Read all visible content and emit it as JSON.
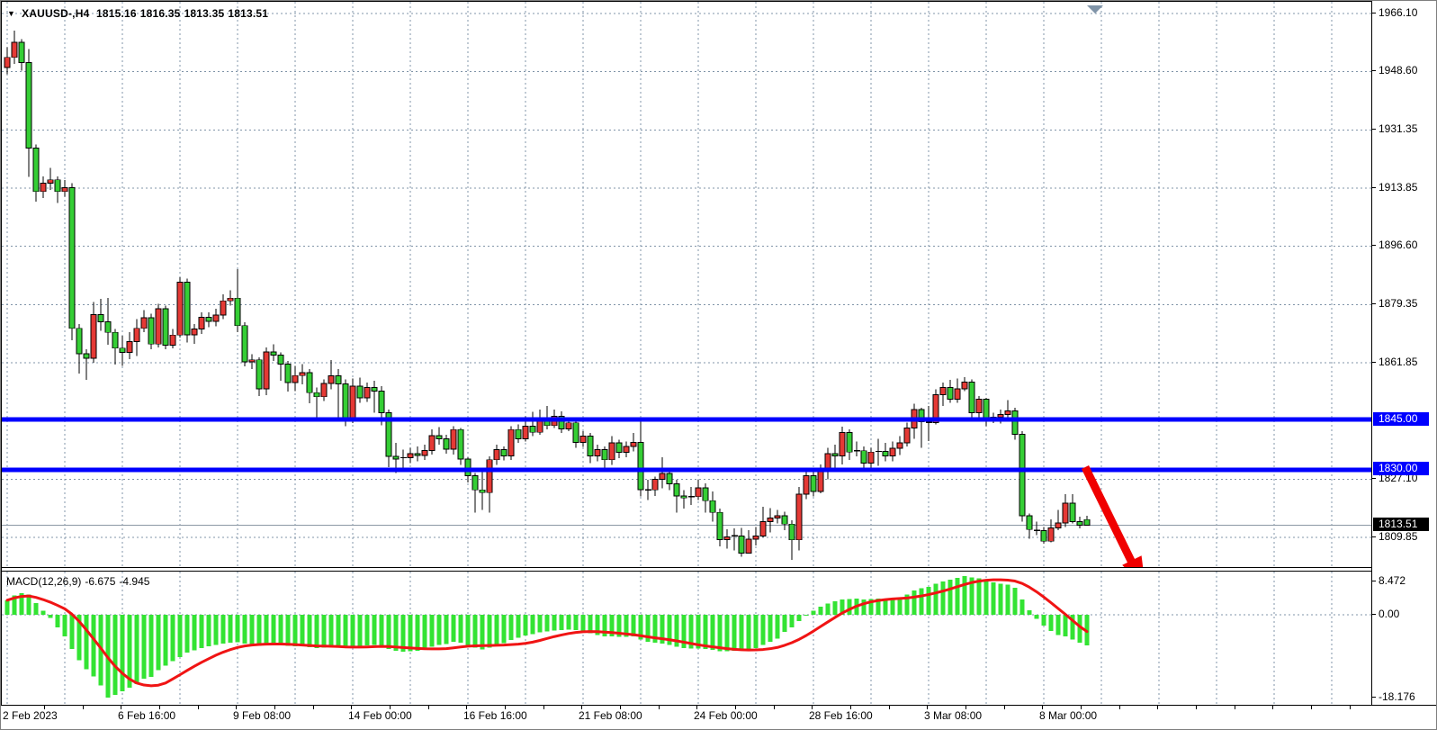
{
  "title": {
    "symbol_period": "XAUUSD-,H4",
    "open": "1815.16",
    "high": "1816.35",
    "low": "1813.35",
    "close": "1813.51"
  },
  "indicator": {
    "name": "MACD(12,26,9)",
    "macd_value": "-6.675",
    "signal_value": "-4.945"
  },
  "price_scale": {
    "gridline_labels": [
      {
        "text": "1966.10",
        "k": 0
      },
      {
        "text": "1948.60",
        "k": 1
      },
      {
        "text": "1931.35",
        "k": 2
      },
      {
        "text": "1913.85",
        "k": 3
      },
      {
        "text": "1896.60",
        "k": 4
      },
      {
        "text": "1879.35",
        "k": 5
      },
      {
        "text": "1861.85",
        "k": 6
      },
      {
        "text": "1827.10",
        "k": 8
      },
      {
        "text": "1809.85",
        "k": 9
      }
    ],
    "hline_tags": [
      {
        "text": "1845.00",
        "price": 1845.0
      },
      {
        "text": "1830.00",
        "price": 1830.0
      }
    ],
    "current_tag": {
      "text": "1813.51",
      "price": 1813.51
    }
  },
  "macd_scale": {
    "max": "8.472",
    "zero": "0.00",
    "min": "-18.176"
  },
  "time_scale": {
    "labels": [
      "2 Feb 2023",
      "6 Feb 16:00",
      "9 Feb 08:00",
      "14 Feb 00:00",
      "16 Feb 16:00",
      "21 Feb 08:00",
      "24 Feb 00:00",
      "28 Feb 16:00",
      "3 Mar 08:00",
      "8 Mar 00:00"
    ]
  },
  "colors": {
    "bull_candle": "#e53935",
    "bear_candle": "#35ce35",
    "candle_outline": "#000000",
    "wick": "#000000",
    "hline_blue": "#0000ff",
    "tag_blue_bg": "#0000ff",
    "tag_black_bg": "#000000",
    "tag_text": "#ffffff",
    "grid": "#8094a8",
    "current_price_line": "#8c98a4",
    "macd_histogram": "#33e333",
    "macd_signal": "#f01414",
    "arrow_red": "#f00000",
    "shift_marker": "#8094a8",
    "text": "#000000",
    "background": "#ffffff"
  },
  "chart_data": {
    "type": "candlestick",
    "symbol": "XAUUSD",
    "timeframe": "H4",
    "title": "XAUUSD-,H4 1815.16 1816.35 1813.35 1813.51",
    "price_axis_ticks": [
      1966.1,
      1948.6,
      1931.35,
      1913.85,
      1896.6,
      1879.35,
      1861.85,
      1845.0,
      1830.0,
      1827.1,
      1813.51,
      1809.85
    ],
    "time_axis_labels": [
      "2 Feb 2023",
      "6 Feb 16:00",
      "9 Feb 08:00",
      "14 Feb 00:00",
      "16 Feb 16:00",
      "21 Feb 08:00",
      "24 Feb 00:00",
      "28 Feb 16:00",
      "3 Mar 08:00",
      "8 Mar 00:00"
    ],
    "horizontal_lines": [
      1845.0,
      1830.0
    ],
    "current_price": 1813.51,
    "annotation": "large red arrow pointing down-right from the 1830 level",
    "candles_ohlc": [
      [
        1950.0,
        1956.0,
        1948.0,
        1953.0
      ],
      [
        1953.0,
        1961.0,
        1951.0,
        1957.5
      ],
      [
        1957.5,
        1958.5,
        1949.0,
        1951.5
      ],
      [
        1951.5,
        1955.5,
        1917.4,
        1926.0
      ],
      [
        1926.0,
        1927.0,
        1910.0,
        1913.0
      ],
      [
        1913.0,
        1917.5,
        1911.0,
        1915.5
      ],
      [
        1915.5,
        1920.0,
        1913.5,
        1916.5
      ],
      [
        1916.5,
        1917.5,
        1909.6,
        1913.0
      ],
      [
        1913.0,
        1916.5,
        1911.5,
        1914.2
      ],
      [
        1914.2,
        1915.5,
        1868.7,
        1872.2
      ],
      [
        1872.2,
        1873.5,
        1858.7,
        1864.6
      ],
      [
        1864.6,
        1866.0,
        1856.8,
        1863.3
      ],
      [
        1863.3,
        1880.0,
        1862.0,
        1876.3
      ],
      [
        1876.3,
        1881.0,
        1871.4,
        1874.2
      ],
      [
        1874.2,
        1881.2,
        1867.3,
        1871.0
      ],
      [
        1871.0,
        1872.0,
        1861.4,
        1866.3
      ],
      [
        1866.3,
        1870.0,
        1861.0,
        1865.0
      ],
      [
        1865.0,
        1871.0,
        1863.0,
        1868.2
      ],
      [
        1868.2,
        1874.9,
        1864.0,
        1872.2
      ],
      [
        1872.2,
        1877.6,
        1871.0,
        1875.4
      ],
      [
        1875.4,
        1876.5,
        1866.0,
        1867.5
      ],
      [
        1867.5,
        1879.5,
        1866.5,
        1878.0
      ],
      [
        1878.0,
        1879.0,
        1866.0,
        1867.2
      ],
      [
        1867.2,
        1872.0,
        1866.2,
        1870.2
      ],
      [
        1870.2,
        1887.5,
        1869.5,
        1886.0
      ],
      [
        1886.0,
        1887.0,
        1868.0,
        1870.3
      ],
      [
        1870.3,
        1873.5,
        1867.6,
        1872.0
      ],
      [
        1872.0,
        1877.0,
        1870.5,
        1875.5
      ],
      [
        1875.5,
        1877.0,
        1872.5,
        1874.3
      ],
      [
        1874.3,
        1878.0,
        1872.8,
        1876.2
      ],
      [
        1876.2,
        1882.3,
        1875.0,
        1880.4
      ],
      [
        1880.4,
        1883.5,
        1879.0,
        1881.2
      ],
      [
        1881.2,
        1889.8,
        1871.0,
        1873.0
      ],
      [
        1873.0,
        1874.0,
        1860.9,
        1862.2
      ],
      [
        1862.2,
        1864.5,
        1860.0,
        1862.8
      ],
      [
        1862.8,
        1863.5,
        1852.0,
        1854.2
      ],
      [
        1854.2,
        1866.5,
        1852.3,
        1865.2
      ],
      [
        1865.2,
        1867.5,
        1862.5,
        1864.2
      ],
      [
        1864.2,
        1865.0,
        1856.5,
        1861.5
      ],
      [
        1861.5,
        1862.5,
        1853.3,
        1856.0
      ],
      [
        1856.0,
        1861.0,
        1853.5,
        1858.1
      ],
      [
        1858.1,
        1861.5,
        1855.5,
        1859.0
      ],
      [
        1859.0,
        1860.0,
        1849.8,
        1853.0
      ],
      [
        1853.0,
        1854.5,
        1845.2,
        1851.8
      ],
      [
        1851.8,
        1857.0,
        1850.5,
        1855.8
      ],
      [
        1855.8,
        1862.7,
        1854.0,
        1858.0
      ],
      [
        1858.0,
        1860.0,
        1845.0,
        1855.6
      ],
      [
        1855.6,
        1857.0,
        1843.0,
        1845.0
      ],
      [
        1845.0,
        1857.2,
        1844.0,
        1855.0
      ],
      [
        1855.0,
        1857.5,
        1850.0,
        1851.5
      ],
      [
        1851.5,
        1856.0,
        1850.2,
        1854.5
      ],
      [
        1854.5,
        1856.5,
        1847.0,
        1853.5
      ],
      [
        1853.5,
        1855.0,
        1843.3,
        1847.0
      ],
      [
        1847.0,
        1848.0,
        1830.8,
        1834.0
      ],
      [
        1834.0,
        1838.0,
        1829.0,
        1833.2
      ],
      [
        1833.2,
        1836.0,
        1830.0,
        1833.6
      ],
      [
        1833.6,
        1836.5,
        1832.0,
        1834.8
      ],
      [
        1834.8,
        1837.0,
        1832.5,
        1834.3
      ],
      [
        1834.3,
        1837.5,
        1833.0,
        1835.8
      ],
      [
        1835.8,
        1842.0,
        1834.5,
        1840.2
      ],
      [
        1840.2,
        1842.8,
        1837.5,
        1839.2
      ],
      [
        1839.2,
        1840.5,
        1834.8,
        1836.2
      ],
      [
        1836.2,
        1843.0,
        1834.5,
        1842.0
      ],
      [
        1842.0,
        1842.5,
        1831.5,
        1833.2
      ],
      [
        1833.2,
        1833.8,
        1826.2,
        1828.2
      ],
      [
        1828.2,
        1829.0,
        1817.2,
        1824.0
      ],
      [
        1824.0,
        1830.0,
        1818.0,
        1823.2
      ],
      [
        1823.2,
        1834.0,
        1817.2,
        1833.0
      ],
      [
        1833.0,
        1837.5,
        1831.5,
        1836.0
      ],
      [
        1836.0,
        1837.0,
        1832.8,
        1834.2
      ],
      [
        1834.2,
        1843.0,
        1833.0,
        1842.0
      ],
      [
        1842.0,
        1843.5,
        1838.0,
        1839.2
      ],
      [
        1839.2,
        1846.0,
        1838.5,
        1843.0
      ],
      [
        1843.0,
        1847.3,
        1840.0,
        1841.2
      ],
      [
        1841.2,
        1848.0,
        1840.5,
        1845.0
      ],
      [
        1845.0,
        1849.0,
        1842.0,
        1843.2
      ],
      [
        1843.2,
        1848.0,
        1842.5,
        1846.0
      ],
      [
        1846.0,
        1847.5,
        1841.0,
        1842.2
      ],
      [
        1842.2,
        1845.5,
        1841.5,
        1844.0
      ],
      [
        1844.0,
        1844.8,
        1836.5,
        1838.2
      ],
      [
        1838.2,
        1841.5,
        1836.8,
        1840.0
      ],
      [
        1840.0,
        1841.0,
        1832.0,
        1834.2
      ],
      [
        1834.2,
        1837.5,
        1832.5,
        1836.0
      ],
      [
        1836.0,
        1837.0,
        1830.0,
        1833.0
      ],
      [
        1833.0,
        1840.0,
        1831.5,
        1838.0
      ],
      [
        1838.0,
        1839.0,
        1833.5,
        1835.2
      ],
      [
        1835.2,
        1838.5,
        1833.8,
        1837.0
      ],
      [
        1837.0,
        1841.0,
        1835.5,
        1838.2
      ],
      [
        1838.2,
        1845.2,
        1822.0,
        1824.1
      ],
      [
        1824.1,
        1827.0,
        1821.0,
        1824.0
      ],
      [
        1824.0,
        1828.0,
        1822.2,
        1827.2
      ],
      [
        1827.2,
        1833.8,
        1824.5,
        1828.9
      ],
      [
        1828.9,
        1830.0,
        1824.0,
        1825.8
      ],
      [
        1825.8,
        1827.0,
        1817.3,
        1822.2
      ],
      [
        1822.2,
        1824.0,
        1818.5,
        1821.6
      ],
      [
        1821.6,
        1824.9,
        1819.5,
        1822.0
      ],
      [
        1822.0,
        1827.0,
        1821.0,
        1824.6
      ],
      [
        1824.6,
        1826.0,
        1817.3,
        1820.8
      ],
      [
        1820.8,
        1823.5,
        1814.6,
        1817.3
      ],
      [
        1817.3,
        1818.5,
        1807.1,
        1809.2
      ],
      [
        1809.2,
        1812.2,
        1806.5,
        1810.0
      ],
      [
        1810.0,
        1812.5,
        1805.9,
        1810.3
      ],
      [
        1810.3,
        1812.7,
        1804.1,
        1805.1
      ],
      [
        1805.1,
        1812.0,
        1805.0,
        1809.3
      ],
      [
        1809.3,
        1813.0,
        1807.5,
        1810.2
      ],
      [
        1810.2,
        1819.0,
        1809.8,
        1814.5
      ],
      [
        1814.5,
        1818.6,
        1811.3,
        1815.6
      ],
      [
        1815.6,
        1818.0,
        1814.0,
        1816.3
      ],
      [
        1816.3,
        1817.5,
        1812.0,
        1813.8
      ],
      [
        1813.8,
        1815.0,
        1803.2,
        1809.1
      ],
      [
        1809.1,
        1824.9,
        1806.0,
        1822.7
      ],
      [
        1822.7,
        1830.3,
        1821.3,
        1828.2
      ],
      [
        1828.2,
        1829.5,
        1822.0,
        1823.5
      ],
      [
        1823.5,
        1831.6,
        1823.0,
        1829.7
      ],
      [
        1829.7,
        1836.6,
        1827.1,
        1834.8
      ],
      [
        1834.8,
        1837.5,
        1830.7,
        1834.2
      ],
      [
        1834.2,
        1842.9,
        1831.6,
        1841.1
      ],
      [
        1841.1,
        1842.0,
        1833.0,
        1835.3
      ],
      [
        1835.3,
        1838.5,
        1834.0,
        1835.7
      ],
      [
        1835.7,
        1837.0,
        1829.8,
        1832.0
      ],
      [
        1832.0,
        1836.5,
        1830.5,
        1835.3
      ],
      [
        1835.3,
        1839.3,
        1831.2,
        1835.5
      ],
      [
        1835.5,
        1838.0,
        1832.5,
        1834.2
      ],
      [
        1834.2,
        1838.5,
        1832.5,
        1836.4
      ],
      [
        1836.4,
        1840.0,
        1834.4,
        1838.0
      ],
      [
        1838.0,
        1844.1,
        1837.0,
        1842.5
      ],
      [
        1842.5,
        1849.7,
        1839.3,
        1848.0
      ],
      [
        1848.0,
        1848.5,
        1836.6,
        1844.4
      ],
      [
        1844.4,
        1849.0,
        1838.6,
        1844.1
      ],
      [
        1844.1,
        1854.0,
        1843.5,
        1852.4
      ],
      [
        1852.4,
        1856.0,
        1849.0,
        1854.6
      ],
      [
        1854.6,
        1856.8,
        1850.0,
        1851.1
      ],
      [
        1851.1,
        1857.3,
        1850.0,
        1854.1
      ],
      [
        1854.1,
        1857.6,
        1853.5,
        1856.2
      ],
      [
        1856.2,
        1857.0,
        1844.6,
        1847.0
      ],
      [
        1847.0,
        1852.0,
        1845.0,
        1851.1
      ],
      [
        1851.1,
        1851.5,
        1843.0,
        1844.6
      ],
      [
        1844.6,
        1847.0,
        1844.0,
        1845.7
      ],
      [
        1845.7,
        1848.0,
        1843.8,
        1846.5
      ],
      [
        1846.5,
        1850.8,
        1845.5,
        1847.6
      ],
      [
        1847.6,
        1848.5,
        1839.0,
        1840.6
      ],
      [
        1840.6,
        1841.5,
        1814.6,
        1816.3
      ],
      [
        1816.3,
        1817.0,
        1809.5,
        1812.2
      ],
      [
        1812.2,
        1814.5,
        1810.5,
        1811.9
      ],
      [
        1811.9,
        1813.0,
        1808.0,
        1808.7
      ],
      [
        1808.7,
        1815.2,
        1808.4,
        1812.7
      ],
      [
        1812.7,
        1818.1,
        1812.0,
        1814.1
      ],
      [
        1814.1,
        1822.8,
        1813.0,
        1820.0
      ],
      [
        1820.0,
        1822.8,
        1814.0,
        1814.6
      ],
      [
        1814.6,
        1816.0,
        1812.5,
        1813.5
      ],
      [
        1815.16,
        1816.35,
        1813.35,
        1813.51
      ]
    ],
    "macd": {
      "settings": [
        12,
        26,
        9
      ],
      "current_macd": -6.675,
      "current_signal": -4.945,
      "range": [
        -18.176,
        8.472
      ],
      "histogram": [
        3.2,
        4.2,
        4.7,
        4.4,
        2.6,
        0.9,
        -0.7,
        -2.8,
        -4.7,
        -7.5,
        -10.0,
        -12.0,
        -13.5,
        -15.5,
        -18.18,
        -17.6,
        -16.8,
        -16.0,
        -15.2,
        -14.0,
        -13.6,
        -12.2,
        -11.2,
        -10.2,
        -9.3,
        -8.3,
        -7.8,
        -7.3,
        -6.9,
        -6.6,
        -6.3,
        -6.1,
        -6.0,
        -6.3,
        -6.5,
        -6.8,
        -6.6,
        -6.5,
        -6.6,
        -6.8,
        -6.9,
        -6.9,
        -7.1,
        -7.3,
        -7.2,
        -7.0,
        -7.0,
        -7.3,
        -7.0,
        -6.9,
        -6.7,
        -6.6,
        -6.8,
        -7.5,
        -7.9,
        -8.1,
        -8.0,
        -7.9,
        -7.6,
        -7.0,
        -6.6,
        -6.4,
        -5.9,
        -6.1,
        -6.6,
        -7.2,
        -7.6,
        -7.2,
        -6.6,
        -6.2,
        -5.5,
        -5.0,
        -4.5,
        -4.2,
        -3.9,
        -3.7,
        -3.5,
        -3.4,
        -3.3,
        -3.4,
        -3.7,
        -4.1,
        -4.4,
        -4.7,
        -4.7,
        -4.8,
        -4.8,
        -4.7,
        -5.4,
        -5.9,
        -6.1,
        -6.3,
        -6.6,
        -7.0,
        -7.3,
        -7.4,
        -7.4,
        -7.5,
        -7.7,
        -8.0,
        -8.0,
        -7.9,
        -7.9,
        -7.7,
        -7.3,
        -6.6,
        -5.9,
        -5.2,
        -3.8,
        -2.8,
        -1.4,
        -0.2,
        0.9,
        1.8,
        2.5,
        3.0,
        3.4,
        3.5,
        3.6,
        3.4,
        3.5,
        3.6,
        3.6,
        3.7,
        3.9,
        4.4,
        5.3,
        5.8,
        6.1,
        6.8,
        7.3,
        7.7,
        8.1,
        8.47,
        8.2,
        8.0,
        7.5,
        7.1,
        6.8,
        6.6,
        5.9,
        3.4,
        1.0,
        -0.9,
        -2.4,
        -3.6,
        -4.4,
        -4.7,
        -5.4,
        -6.1,
        -6.675
      ]
    }
  }
}
